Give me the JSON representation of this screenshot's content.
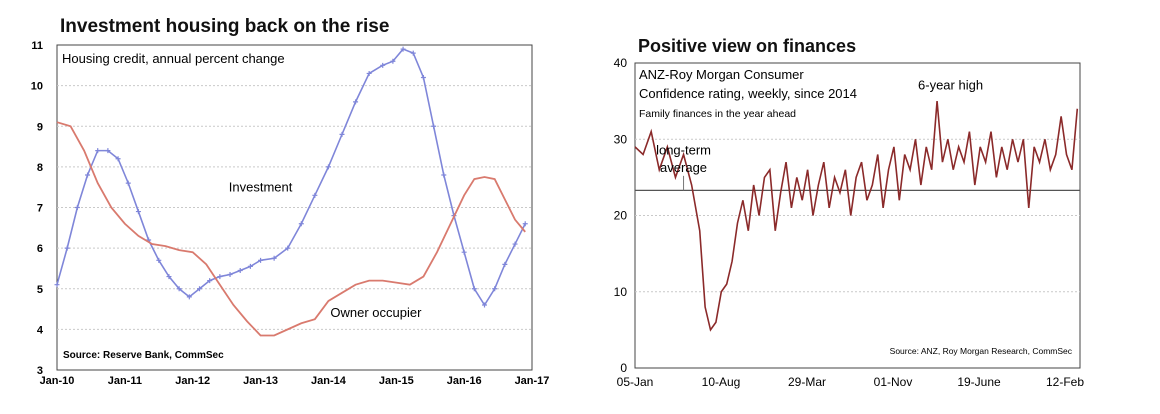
{
  "chart_data": [
    {
      "type": "line",
      "title": "Investment housing back on the rise",
      "subtitle": "Housing credit, annual percent change",
      "source": "Source: Reserve Bank, CommSec",
      "x_ticks": [
        "Jan-10",
        "Jan-11",
        "Jan-12",
        "Jan-13",
        "Jan-14",
        "Jan-15",
        "Jan-16",
        "Jan-17"
      ],
      "y_ticks": [
        "3",
        "4",
        "5",
        "6",
        "7",
        "8",
        "9",
        "10",
        "11"
      ],
      "ylim": [
        3,
        11
      ],
      "xlim": [
        2010.0,
        2017.0
      ],
      "grid": true,
      "colors": {
        "investment": "#7f86d9",
        "owner_occupier": "#d97a6e"
      },
      "series": [
        {
          "name": "Investment",
          "x": [
            2010.0,
            2010.15,
            2010.3,
            2010.45,
            2010.6,
            2010.75,
            2010.9,
            2011.05,
            2011.2,
            2011.35,
            2011.5,
            2011.65,
            2011.8,
            2011.95,
            2012.1,
            2012.25,
            2012.4,
            2012.55,
            2012.7,
            2012.85,
            2013.0,
            2013.2,
            2013.4,
            2013.6,
            2013.8,
            2014.0,
            2014.2,
            2014.4,
            2014.6,
            2014.8,
            2014.95,
            2015.1,
            2015.25,
            2015.4,
            2015.55,
            2015.7,
            2015.85,
            2016.0,
            2016.15,
            2016.3,
            2016.45,
            2016.6,
            2016.75,
            2016.9
          ],
          "values": [
            5.1,
            6.0,
            7.0,
            7.8,
            8.4,
            8.4,
            8.2,
            7.6,
            6.9,
            6.2,
            5.7,
            5.3,
            5.0,
            4.8,
            5.0,
            5.2,
            5.3,
            5.35,
            5.45,
            5.55,
            5.7,
            5.75,
            6.0,
            6.6,
            7.3,
            8.0,
            8.8,
            9.6,
            10.3,
            10.5,
            10.6,
            10.9,
            10.8,
            10.2,
            9.0,
            7.8,
            6.8,
            5.9,
            5.0,
            4.6,
            5.0,
            5.6,
            6.1,
            6.6
          ]
        },
        {
          "name": "Owner occupier",
          "x": [
            2010.0,
            2010.2,
            2010.4,
            2010.6,
            2010.8,
            2011.0,
            2011.2,
            2011.4,
            2011.6,
            2011.8,
            2012.0,
            2012.2,
            2012.4,
            2012.6,
            2012.8,
            2013.0,
            2013.2,
            2013.4,
            2013.6,
            2013.8,
            2014.0,
            2014.2,
            2014.4,
            2014.6,
            2014.8,
            2015.0,
            2015.2,
            2015.4,
            2015.6,
            2015.8,
            2016.0,
            2016.15,
            2016.3,
            2016.45,
            2016.6,
            2016.75,
            2016.9
          ],
          "values": [
            9.1,
            9.0,
            8.4,
            7.6,
            7.0,
            6.6,
            6.3,
            6.1,
            6.05,
            5.95,
            5.9,
            5.6,
            5.1,
            4.6,
            4.2,
            3.85,
            3.85,
            4.0,
            4.15,
            4.25,
            4.7,
            4.9,
            5.1,
            5.2,
            5.2,
            5.15,
            5.1,
            5.3,
            5.9,
            6.6,
            7.3,
            7.7,
            7.75,
            7.7,
            7.2,
            6.7,
            6.4
          ]
        }
      ],
      "annotations": [
        {
          "text": "Investment",
          "x": 2013.0,
          "y": 7.4
        },
        {
          "text": "Owner occupier",
          "x": 2014.7,
          "y": 4.3
        }
      ]
    },
    {
      "type": "line",
      "title": "Positive view on finances",
      "subtitle_lines": [
        "ANZ-Roy Morgan Consumer",
        "Confidence rating, weekly, since 2014",
        "Family finances in the year ahead"
      ],
      "source": "Source: ANZ, Roy Morgan Research, CommSec",
      "x_ticks": [
        "05-Jan",
        "10-Aug",
        "29-Mar",
        "01-Nov",
        "19-June",
        "12-Feb"
      ],
      "y_ticks": [
        "0",
        "10",
        "20",
        "30",
        "40"
      ],
      "ylim": [
        0,
        40
      ],
      "xlim": [
        0,
        165
      ],
      "grid": true,
      "long_term_average": 23.3,
      "colors": {
        "series": "#8b2a2a",
        "average": "#555555"
      },
      "series": [
        {
          "name": "Family finances in the year ahead",
          "x": [
            0,
            3,
            6,
            9,
            12,
            15,
            18,
            21,
            24,
            26,
            28,
            30,
            32,
            34,
            36,
            38,
            40,
            42,
            44,
            46,
            48,
            50,
            52,
            54,
            56,
            58,
            60,
            62,
            64,
            66,
            68,
            70,
            72,
            74,
            76,
            78,
            80,
            82,
            84,
            86,
            88,
            90,
            92,
            94,
            96,
            98,
            100,
            102,
            104,
            106,
            108,
            110,
            112,
            114,
            116,
            118,
            120,
            122,
            124,
            126,
            128,
            130,
            132,
            134,
            136,
            138,
            140,
            142,
            144,
            146,
            148,
            150,
            152,
            154,
            156,
            158,
            160,
            162,
            164
          ],
          "values": [
            29,
            28,
            31,
            26,
            29,
            25,
            28,
            24,
            18,
            8,
            5,
            6,
            10,
            11,
            14,
            19,
            22,
            18,
            24,
            20,
            25,
            26,
            18,
            23,
            27,
            21,
            25,
            22,
            26,
            20,
            24,
            27,
            21,
            25,
            23,
            26,
            20,
            25,
            27,
            22,
            24,
            28,
            21,
            26,
            29,
            22,
            28,
            26,
            30,
            24,
            29,
            26,
            35,
            27,
            30,
            26,
            29,
            27,
            31,
            24,
            29,
            27,
            31,
            25,
            29,
            26,
            30,
            27,
            30,
            21,
            29,
            27,
            30,
            26,
            28,
            33,
            28,
            26,
            34
          ]
        }
      ],
      "annotations": [
        {
          "text": "long-term",
          "x": 18,
          "y": 28
        },
        {
          "text": "average",
          "x": 18,
          "y": 25.7
        },
        {
          "text": "6-year high",
          "x": 117,
          "y": 36.5
        }
      ]
    }
  ]
}
